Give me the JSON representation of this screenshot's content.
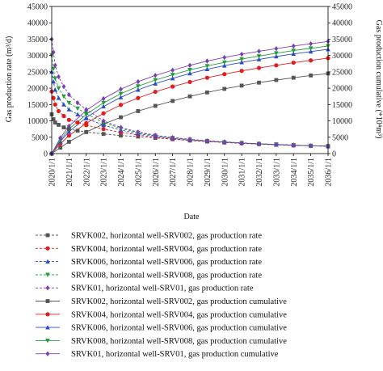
{
  "chart_data": {
    "type": "line",
    "xlabel": "Date",
    "ylabel_left": "Gas production rate (m³/d)",
    "ylabel_right": "Gas production cumulative (*10⁴m³)",
    "ylim_left": [
      0,
      45000
    ],
    "ylim_right": [
      0,
      45000
    ],
    "ytick_step": 5000,
    "xlim": [
      2020,
      2036
    ],
    "x_tick_labels": [
      "2020/1/1",
      "2021/1/1",
      "2022/1/1",
      "2023/1/1",
      "2024/1/1",
      "2025/1/1",
      "2026/1/1",
      "2027/1/1",
      "2028/1/1",
      "2029/1/1",
      "2030/1/1",
      "2031/1/1",
      "2032/1/1",
      "2033/1/1",
      "2034/1/1",
      "2035/1/1",
      "2036/1/1"
    ],
    "legend_placement": "bottom",
    "series": [
      {
        "name": "SRVK002, horizontal well-SRV002, gas production rate",
        "kind": "rate",
        "color": "#555555",
        "marker": "square",
        "x": [
          2020.0,
          2020.1,
          2020.2,
          2020.4,
          2020.7,
          2021.0,
          2021.5,
          2022.0,
          2023.0,
          2024.0,
          2025.0,
          2026.0,
          2027.0,
          2028.0,
          2029.0,
          2030.0,
          2031.0,
          2032.0,
          2033.0,
          2034.0,
          2035.0,
          2036.0
        ],
        "y": [
          12000,
          10500,
          9500,
          8800,
          8000,
          7500,
          7000,
          6600,
          6000,
          5500,
          5200,
          4800,
          4400,
          4000,
          3700,
          3400,
          3200,
          3000,
          2800,
          2600,
          2400,
          2300
        ]
      },
      {
        "name": "SRVK004, horizontal well-SRV004, gas production rate",
        "kind": "rate",
        "color": "#e41a1c",
        "marker": "circle",
        "x": [
          2020.0,
          2020.1,
          2020.2,
          2020.4,
          2020.7,
          2021.0,
          2021.5,
          2022.0,
          2023.0,
          2024.0,
          2025.0,
          2026.0,
          2027.0,
          2028.0,
          2029.0,
          2030.0,
          2031.0,
          2032.0,
          2033.0,
          2034.0,
          2035.0,
          2036.0
        ],
        "y": [
          19000,
          17000,
          15000,
          13000,
          11500,
          10300,
          9500,
          8700,
          7500,
          6500,
          5700,
          5000,
          4500,
          4000,
          3700,
          3400,
          3100,
          2900,
          2700,
          2500,
          2400,
          2200
        ]
      },
      {
        "name": "SRVK006, horizontal well-SRV006, gas production rate",
        "kind": "rate",
        "color": "#2b4cc8",
        "marker": "triangle-up",
        "x": [
          2020.0,
          2020.1,
          2020.2,
          2020.4,
          2020.7,
          2021.0,
          2021.5,
          2022.0,
          2023.0,
          2024.0,
          2025.0,
          2026.0,
          2027.0,
          2028.0,
          2029.0,
          2030.0,
          2031.0,
          2032.0,
          2033.0,
          2034.0,
          2035.0,
          2036.0
        ],
        "y": [
          25000,
          22000,
          19500,
          17000,
          15000,
          13500,
          12000,
          10800,
          8700,
          7200,
          6100,
          5300,
          4700,
          4200,
          3800,
          3500,
          3200,
          2900,
          2700,
          2500,
          2400,
          2200
        ]
      },
      {
        "name": "SRVK008, horizontal well-SRV008, gas production rate",
        "kind": "rate",
        "color": "#1f9e3a",
        "marker": "triangle-down",
        "x": [
          2020.0,
          2020.1,
          2020.2,
          2020.4,
          2020.7,
          2021.0,
          2021.5,
          2022.0,
          2023.0,
          2024.0,
          2025.0,
          2026.0,
          2027.0,
          2028.0,
          2029.0,
          2030.0,
          2031.0,
          2032.0,
          2033.0,
          2034.0,
          2035.0,
          2036.0
        ],
        "y": [
          30000,
          26000,
          23000,
          20000,
          17500,
          15500,
          13800,
          12200,
          9500,
          7700,
          6400,
          5500,
          4800,
          4300,
          3900,
          3500,
          3200,
          3000,
          2800,
          2600,
          2400,
          2300
        ]
      },
      {
        "name": "SRVK01, horizontal well-SRV01, gas production rate",
        "kind": "rate",
        "color": "#7b3fb5",
        "marker": "diamond",
        "x": [
          2020.0,
          2020.1,
          2020.2,
          2020.4,
          2020.7,
          2021.0,
          2021.5,
          2022.0,
          2023.0,
          2024.0,
          2025.0,
          2026.0,
          2027.0,
          2028.0,
          2029.0,
          2030.0,
          2031.0,
          2032.0,
          2033.0,
          2034.0,
          2035.0,
          2036.0
        ],
        "y": [
          35000,
          31000,
          27000,
          23500,
          20500,
          18000,
          15500,
          13500,
          10000,
          8000,
          6600,
          5600,
          4900,
          4400,
          3900,
          3600,
          3300,
          3000,
          2800,
          2600,
          2400,
          2300
        ]
      },
      {
        "name": "SRVK002, horizontal well-SRV002, gas production cumulative",
        "kind": "cumulative",
        "color": "#555555",
        "marker": "square",
        "x": [
          2020.0,
          2020.5,
          2021.0,
          2022.0,
          2023.0,
          2024.0,
          2025.0,
          2026.0,
          2027.0,
          2028.0,
          2029.0,
          2030.0,
          2031.0,
          2032.0,
          2033.0,
          2034.0,
          2035.0,
          2036.0
        ],
        "y": [
          0,
          1800,
          3600,
          6600,
          9000,
          11100,
          13000,
          14600,
          16100,
          17500,
          18700,
          19800,
          20800,
          21700,
          22500,
          23200,
          23900,
          24500
        ]
      },
      {
        "name": "SRVK004, horizontal well-SRV004, gas production cumulative",
        "kind": "cumulative",
        "color": "#e41a1c",
        "marker": "circle",
        "x": [
          2020.0,
          2020.5,
          2021.0,
          2022.0,
          2023.0,
          2024.0,
          2025.0,
          2026.0,
          2027.0,
          2028.0,
          2029.0,
          2030.0,
          2031.0,
          2032.0,
          2033.0,
          2034.0,
          2035.0,
          2036.0
        ],
        "y": [
          0,
          3000,
          5500,
          9300,
          12300,
          14900,
          17000,
          18900,
          20500,
          21900,
          23200,
          24300,
          25300,
          26200,
          27000,
          27800,
          28500,
          29200
        ]
      },
      {
        "name": "SRVK006, horizontal well-SRV006, gas production cumulative",
        "kind": "cumulative",
        "color": "#2b4cc8",
        "marker": "triangle-up",
        "x": [
          2020.0,
          2020.5,
          2021.0,
          2022.0,
          2023.0,
          2024.0,
          2025.0,
          2026.0,
          2027.0,
          2028.0,
          2029.0,
          2030.0,
          2031.0,
          2032.0,
          2033.0,
          2034.0,
          2035.0,
          2036.0
        ],
        "y": [
          0,
          3700,
          6700,
          11000,
          14400,
          17200,
          19500,
          21400,
          23000,
          24500,
          25800,
          26900,
          27900,
          28800,
          29700,
          30500,
          31200,
          31900
        ]
      },
      {
        "name": "SRVK008, horizontal well-SRV008, gas production cumulative",
        "kind": "cumulative",
        "color": "#1f9e3a",
        "marker": "triangle-down",
        "x": [
          2020.0,
          2020.5,
          2021.0,
          2022.0,
          2023.0,
          2024.0,
          2025.0,
          2026.0,
          2027.0,
          2028.0,
          2029.0,
          2030.0,
          2031.0,
          2032.0,
          2033.0,
          2034.0,
          2035.0,
          2036.0
        ],
        "y": [
          0,
          4200,
          7500,
          12000,
          15500,
          18300,
          20600,
          22500,
          24100,
          25600,
          26800,
          27900,
          28900,
          29800,
          30700,
          31500,
          32200,
          32900
        ]
      },
      {
        "name": "SRVK01, horizontal well-SRV01, gas production cumulative",
        "kind": "cumulative",
        "color": "#7b3fb5",
        "marker": "diamond",
        "x": [
          2020.0,
          2020.5,
          2021.0,
          2022.0,
          2023.0,
          2024.0,
          2025.0,
          2026.0,
          2027.0,
          2028.0,
          2029.0,
          2030.0,
          2031.0,
          2032.0,
          2033.0,
          2034.0,
          2035.0,
          2036.0
        ],
        "y": [
          0,
          4800,
          8400,
          13200,
          16800,
          19700,
          22000,
          23900,
          25500,
          27000,
          28300,
          29400,
          30400,
          31300,
          32100,
          32900,
          33600,
          34300
        ]
      }
    ]
  }
}
